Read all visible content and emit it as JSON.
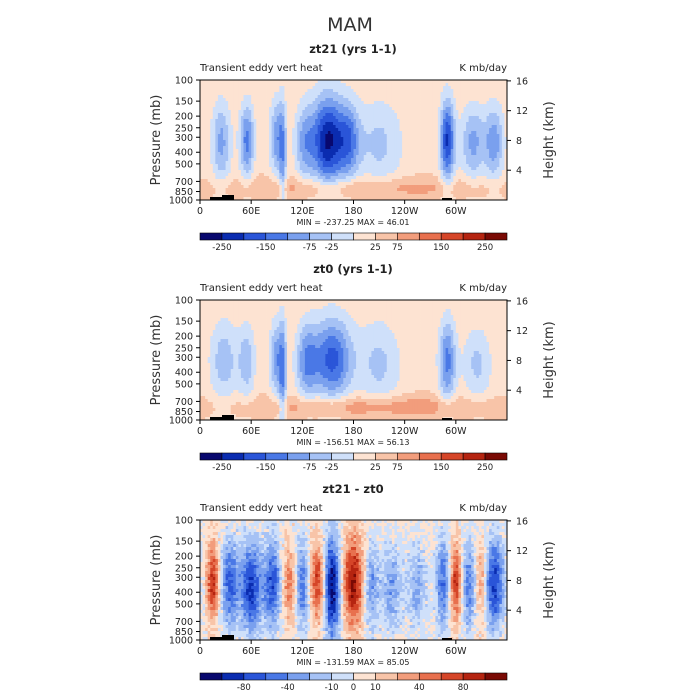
{
  "figure": {
    "title": "MAM"
  },
  "palette": {
    "neg": [
      "#08086e",
      "#0a2cb0",
      "#2a55d8",
      "#4a78e6",
      "#7aa0ee",
      "#a6c2f5",
      "#cfe0fa"
    ],
    "pos": [
      "#fde3d2",
      "#f8c4a8",
      "#f29d7c",
      "#e8704e",
      "#d54528",
      "#b52410",
      "#7a0a04"
    ],
    "topography": "#000000"
  },
  "chart_data": [
    {
      "type": "heatmap",
      "title": "zt21 (yrs 1-1)",
      "left_label": "Transient eddy vert heat",
      "right_label": "K mb/day",
      "ylabel": "Pressure (mb)",
      "y2label": "Height (km)",
      "pressure_ticks": [
        "100",
        "150",
        "200",
        "250",
        "300",
        "400",
        "500",
        "700",
        "850",
        "1000"
      ],
      "height_ticks": [
        "16",
        "12",
        "8",
        "4"
      ],
      "x_ticks": [
        "0",
        "60E",
        "120E",
        "180",
        "120W",
        "60W"
      ],
      "x_range": [
        0,
        360
      ],
      "stats": "MIN = -237.25   MAX =  46.01",
      "colorbar_labels": [
        "-250",
        "-150",
        "-75",
        "-25",
        "25",
        "75",
        "150",
        "250"
      ],
      "features": [
        {
          "lon": 25,
          "p": 330,
          "amp": -0.45,
          "w": 8,
          "d": 0.55
        },
        {
          "lon": 55,
          "p": 320,
          "amp": -0.6,
          "w": 6,
          "d": 0.5
        },
        {
          "lon": 90,
          "p": 300,
          "amp": -0.5,
          "w": 6,
          "d": 0.5
        },
        {
          "lon": 97,
          "p": 450,
          "amp": -0.4,
          "w": 3,
          "d": 0.8
        },
        {
          "lon": 122,
          "p": 330,
          "amp": -0.4,
          "w": 8,
          "d": 0.5
        },
        {
          "lon": 150,
          "p": 320,
          "amp": -1.0,
          "w": 14,
          "d": 0.6
        },
        {
          "lon": 175,
          "p": 320,
          "amp": -0.5,
          "w": 9,
          "d": 0.5
        },
        {
          "lon": 210,
          "p": 340,
          "amp": -0.3,
          "w": 20,
          "d": 0.6
        },
        {
          "lon": 290,
          "p": 320,
          "amp": -0.85,
          "w": 6,
          "d": 0.55
        },
        {
          "lon": 320,
          "p": 330,
          "amp": -0.45,
          "w": 10,
          "d": 0.5
        },
        {
          "lon": 345,
          "p": 330,
          "amp": -0.5,
          "w": 8,
          "d": 0.5
        },
        {
          "lon": 180,
          "p": 800,
          "amp": 0.25,
          "w": 120,
          "d": 0.15
        }
      ],
      "background": 0.12
    },
    {
      "type": "heatmap",
      "title": "zt0 (yrs 1-1)",
      "left_label": "Transient eddy vert heat",
      "right_label": "K mb/day",
      "ylabel": "Pressure (mb)",
      "y2label": "Height (km)",
      "pressure_ticks": [
        "100",
        "150",
        "200",
        "250",
        "300",
        "400",
        "500",
        "700",
        "850",
        "1000"
      ],
      "height_ticks": [
        "16",
        "12",
        "8",
        "4"
      ],
      "x_ticks": [
        "0",
        "60E",
        "120E",
        "180",
        "120W",
        "60W"
      ],
      "x_range": [
        0,
        360
      ],
      "stats": "MIN = -156.51   MAX =  56.13",
      "colorbar_labels": [
        "-250",
        "-150",
        "-75",
        "-25",
        "25",
        "75",
        "150",
        "250"
      ],
      "features": [
        {
          "lon": 28,
          "p": 320,
          "amp": -0.35,
          "w": 12,
          "d": 0.55
        },
        {
          "lon": 55,
          "p": 320,
          "amp": -0.35,
          "w": 7,
          "d": 0.5
        },
        {
          "lon": 90,
          "p": 310,
          "amp": -0.5,
          "w": 6,
          "d": 0.5
        },
        {
          "lon": 97,
          "p": 450,
          "amp": -0.45,
          "w": 3,
          "d": 0.8
        },
        {
          "lon": 125,
          "p": 320,
          "amp": -0.5,
          "w": 9,
          "d": 0.5
        },
        {
          "lon": 155,
          "p": 310,
          "amp": -0.75,
          "w": 16,
          "d": 0.55
        },
        {
          "lon": 210,
          "p": 340,
          "amp": -0.3,
          "w": 18,
          "d": 0.6
        },
        {
          "lon": 290,
          "p": 320,
          "amp": -0.6,
          "w": 7,
          "d": 0.55
        },
        {
          "lon": 325,
          "p": 340,
          "amp": -0.3,
          "w": 12,
          "d": 0.5
        },
        {
          "lon": 200,
          "p": 780,
          "amp": 0.3,
          "w": 110,
          "d": 0.15
        }
      ],
      "background": 0.12
    },
    {
      "type": "heatmap",
      "title": "zt21 - zt0",
      "left_label": "Transient eddy vert heat",
      "right_label": "K mb/day",
      "ylabel": "Pressure (mb)",
      "y2label": "Height (km)",
      "pressure_ticks": [
        "100",
        "150",
        "200",
        "250",
        "300",
        "400",
        "500",
        "700",
        "850",
        "1000"
      ],
      "height_ticks": [
        "16",
        "12",
        "8",
        "4"
      ],
      "x_ticks": [
        "0",
        "60E",
        "120E",
        "180",
        "120W",
        "60W"
      ],
      "x_range": [
        0,
        360
      ],
      "stats": "MIN = -131.59   MAX =  85.05",
      "colorbar_labels": [
        "-80",
        "-40",
        "-10",
        "0",
        "10",
        "40",
        "80"
      ],
      "features": [
        {
          "lon": 15,
          "p": 330,
          "amp": 0.7,
          "w": 5,
          "d": 0.5
        },
        {
          "lon": 35,
          "p": 340,
          "amp": -0.65,
          "w": 7,
          "d": 0.6
        },
        {
          "lon": 60,
          "p": 360,
          "amp": -0.8,
          "w": 9,
          "d": 0.6
        },
        {
          "lon": 85,
          "p": 340,
          "amp": -0.7,
          "w": 7,
          "d": 0.6
        },
        {
          "lon": 105,
          "p": 350,
          "amp": 0.45,
          "w": 6,
          "d": 0.5
        },
        {
          "lon": 120,
          "p": 340,
          "amp": -0.55,
          "w": 6,
          "d": 0.6
        },
        {
          "lon": 138,
          "p": 330,
          "amp": 0.7,
          "w": 6,
          "d": 0.5
        },
        {
          "lon": 155,
          "p": 360,
          "amp": -1.0,
          "w": 7,
          "d": 0.7
        },
        {
          "lon": 180,
          "p": 330,
          "amp": 0.85,
          "w": 9,
          "d": 0.6
        },
        {
          "lon": 200,
          "p": 360,
          "amp": -0.45,
          "w": 7,
          "d": 0.6
        },
        {
          "lon": 225,
          "p": 360,
          "amp": -0.4,
          "w": 9,
          "d": 0.6
        },
        {
          "lon": 255,
          "p": 360,
          "amp": -0.35,
          "w": 8,
          "d": 0.6
        },
        {
          "lon": 285,
          "p": 340,
          "amp": -0.6,
          "w": 6,
          "d": 0.6
        },
        {
          "lon": 300,
          "p": 330,
          "amp": 0.7,
          "w": 5,
          "d": 0.5
        },
        {
          "lon": 315,
          "p": 350,
          "amp": -0.55,
          "w": 6,
          "d": 0.6
        },
        {
          "lon": 330,
          "p": 320,
          "amp": 0.4,
          "w": 5,
          "d": 0.5
        },
        {
          "lon": 345,
          "p": 340,
          "amp": -0.8,
          "w": 8,
          "d": 0.6
        }
      ],
      "background": 0.05,
      "noise": 0.22
    }
  ]
}
